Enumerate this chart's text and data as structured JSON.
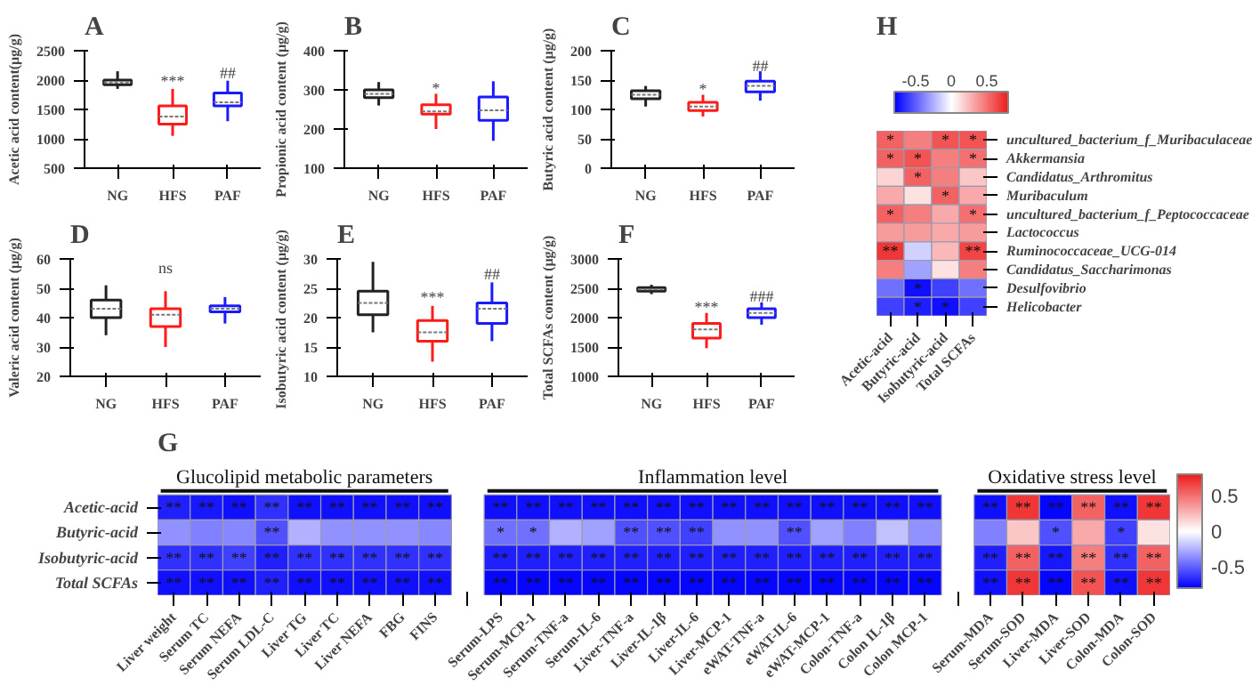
{
  "chart_data": [
    {
      "type": "box",
      "title": "A",
      "ylabel": "Acetic acid content(μg/g)",
      "categories": [
        "NG",
        "HFS",
        "PAF"
      ],
      "colors": [
        "#222222",
        "#ff1a1a",
        "#1a1aff"
      ],
      "ylim": [
        500,
        2500
      ],
      "yticks": [
        500,
        1000,
        1500,
        2000,
        2500
      ],
      "boxes": [
        {
          "low": 1850,
          "q1": 1920,
          "median": 1960,
          "q3": 2000,
          "high": 2150
        },
        {
          "low": 1050,
          "q1": 1250,
          "median": 1380,
          "q3": 1560,
          "high": 1850
        },
        {
          "low": 1300,
          "q1": 1560,
          "median": 1620,
          "q3": 1780,
          "high": 1990
        }
      ],
      "annotations": [
        {
          "text": "***",
          "x": "HFS",
          "y": 1980
        },
        {
          "text": "##",
          "x": "PAF",
          "y": 2120
        }
      ]
    },
    {
      "type": "box",
      "title": "B",
      "ylabel": "Propionic acid content (μg/g)",
      "categories": [
        "NG",
        "HFS",
        "PAF"
      ],
      "colors": [
        "#222222",
        "#ff1a1a",
        "#1a1aff"
      ],
      "ylim": [
        100,
        400
      ],
      "yticks": [
        100,
        200,
        300,
        400
      ],
      "boxes": [
        {
          "low": 260,
          "q1": 280,
          "median": 290,
          "q3": 300,
          "high": 320
        },
        {
          "low": 200,
          "q1": 238,
          "median": 245,
          "q3": 262,
          "high": 290
        },
        {
          "low": 170,
          "q1": 222,
          "median": 248,
          "q3": 282,
          "high": 322
        }
      ],
      "annotations": [
        {
          "text": "*",
          "x": "HFS",
          "y": 305
        }
      ]
    },
    {
      "type": "box",
      "title": "C",
      "ylabel": "Butyric acid content (μg/g)",
      "categories": [
        "NG",
        "HFS",
        "PAF"
      ],
      "colors": [
        "#222222",
        "#ff1a1a",
        "#1a1aff"
      ],
      "ylim": [
        0,
        200
      ],
      "yticks": [
        0,
        50,
        100,
        150,
        200
      ],
      "boxes": [
        {
          "low": 105,
          "q1": 118,
          "median": 125,
          "q3": 132,
          "high": 140
        },
        {
          "low": 88,
          "q1": 98,
          "median": 105,
          "q3": 112,
          "high": 125
        },
        {
          "low": 115,
          "q1": 130,
          "median": 140,
          "q3": 148,
          "high": 165
        }
      ],
      "annotations": [
        {
          "text": "*",
          "x": "HFS",
          "y": 135
        },
        {
          "text": "##",
          "x": "PAF",
          "y": 175
        }
      ]
    },
    {
      "type": "box",
      "title": "D",
      "ylabel": "Valeric acid content (μg/g)",
      "categories": [
        "NG",
        "HFS",
        "PAF"
      ],
      "colors": [
        "#222222",
        "#ff1a1a",
        "#1a1aff"
      ],
      "ylim": [
        20,
        60
      ],
      "yticks": [
        20,
        30,
        40,
        50,
        60
      ],
      "boxes": [
        {
          "low": 34,
          "q1": 40,
          "median": 43,
          "q3": 46,
          "high": 51
        },
        {
          "low": 30,
          "q1": 37,
          "median": 41,
          "q3": 43,
          "high": 49
        },
        {
          "low": 38,
          "q1": 42,
          "median": 43,
          "q3": 44,
          "high": 47
        }
      ],
      "annotations": [
        "ns"
      ]
    },
    {
      "type": "box",
      "title": "E",
      "ylabel": "Isobutyric acid content  (μg/g)",
      "categories": [
        "NG",
        "HFS",
        "PAF"
      ],
      "colors": [
        "#222222",
        "#ff1a1a",
        "#1a1aff"
      ],
      "ylim": [
        10,
        30
      ],
      "yticks": [
        10,
        15,
        20,
        25,
        30
      ],
      "boxes": [
        {
          "low": 17.5,
          "q1": 20.5,
          "median": 22.5,
          "q3": 24.5,
          "high": 29.5
        },
        {
          "low": 12.5,
          "q1": 16,
          "median": 17.5,
          "q3": 19.5,
          "high": 22
        },
        {
          "low": 16,
          "q1": 19,
          "median": 21.5,
          "q3": 22.5,
          "high": 26
        }
      ],
      "annotations": [
        {
          "text": "***",
          "x": "HFS",
          "y": 23.5
        },
        {
          "text": "##",
          "x": "PAF",
          "y": 27.5
        }
      ]
    },
    {
      "type": "box",
      "title": "F",
      "ylabel": "Total SCFAs content (μg/g)",
      "categories": [
        "NG",
        "HFS",
        "PAF"
      ],
      "colors": [
        "#222222",
        "#ff1a1a",
        "#1a1aff"
      ],
      "ylim": [
        1000,
        3000
      ],
      "yticks": [
        1000,
        1500,
        2000,
        2500,
        3000
      ],
      "boxes": [
        {
          "low": 2400,
          "q1": 2450,
          "median": 2480,
          "q3": 2510,
          "high": 2560
        },
        {
          "low": 1480,
          "q1": 1650,
          "median": 1800,
          "q3": 1900,
          "high": 2080
        },
        {
          "low": 1880,
          "q1": 2000,
          "median": 2080,
          "q3": 2150,
          "high": 2260
        }
      ],
      "annotations": [
        {
          "text": "***",
          "x": "HFS",
          "y": 2180
        },
        {
          "text": "###",
          "x": "PAF",
          "y": 2360
        }
      ]
    },
    {
      "type": "heatmap",
      "title": "H",
      "categories": [
        "Acetic-acid",
        "Butyric-acid",
        "Isobutyric-acid",
        "Total SCFAs"
      ],
      "y_categories": [
        "uncultured_bacterium_f_Muribaculaceae",
        "Akkermansia",
        "Candidatus_Arthromitus",
        "Muribaculum",
        "uncultured_bacterium_f_Peptococcaceae",
        "Lactococcus",
        "Ruminococcaceae_UCG-014",
        "Candidatus_Saccharimonas",
        "Desulfovibrio",
        "Helicobacter"
      ],
      "cells": [
        [
          0.55,
          0.45,
          0.6,
          0.6
        ],
        [
          0.55,
          0.6,
          0.45,
          0.5
        ],
        [
          0.15,
          0.55,
          0.45,
          0.2
        ],
        [
          0.3,
          0.1,
          0.55,
          0.3
        ],
        [
          0.55,
          0.45,
          0.3,
          0.5
        ],
        [
          0.35,
          0.35,
          0.3,
          0.35
        ],
        [
          0.7,
          -0.15,
          0.25,
          0.65
        ],
        [
          0.45,
          -0.3,
          0.1,
          0.45
        ],
        [
          -0.45,
          -0.75,
          -0.6,
          -0.45
        ],
        [
          -0.6,
          -0.7,
          -0.75,
          -0.6
        ]
      ],
      "cell_labels": [
        [
          "*",
          null,
          "*",
          "*"
        ],
        [
          "*",
          "*",
          null,
          "*"
        ],
        [
          null,
          "*",
          null,
          null
        ],
        [
          null,
          null,
          "*",
          null
        ],
        [
          "*",
          null,
          null,
          "*"
        ],
        [
          null,
          null,
          null,
          null
        ],
        [
          "**",
          null,
          null,
          "**"
        ],
        [
          null,
          null,
          null,
          null
        ],
        [
          null,
          "*",
          null,
          null
        ],
        [
          null,
          "*",
          "*",
          null
        ]
      ],
      "clim": [
        -0.8,
        0.8
      ],
      "cticks": [
        -0.5,
        0,
        0.5
      ]
    },
    {
      "type": "heatmap",
      "title": "G",
      "annotations": [
        "Glucolipid metabolic parameters",
        "Inflammation level",
        "Oxidative stress level"
      ],
      "categories": [
        "Liver weight",
        "Serum TC",
        "Serum NEFA",
        "Serum LDL-C",
        "Liver TG",
        "Liver TC",
        "Liver NEFA",
        "FBG",
        "FINS",
        null,
        "Serum-LPS",
        "Serum-MCP-1",
        "Serum-TNF-a",
        "Serum-IL-6",
        "Liver-TNF-a",
        "Liver-IL-1β",
        "Liver-IL-6",
        "Liver-MCP-1",
        "eWAT-TNF-a",
        "eWAT-IL-6",
        "eWAT-MCP-1",
        "Colon-TNF-a",
        "Colon IL-1β",
        "Colon MCP-1",
        null,
        "Serum-MDA",
        "Serum-SOD",
        "Liver-MDA",
        "Liver-SOD",
        "Colon-MDA",
        "Colon-SOD"
      ],
      "y_categories": [
        "Acetic-acid",
        "Butyric-acid",
        "Isobutyric-acid",
        "Total SCFAs"
      ],
      "cells": [
        [
          -0.7,
          -0.72,
          -0.75,
          -0.65,
          -0.75,
          -0.75,
          -0.75,
          -0.75,
          -0.75,
          null,
          -0.75,
          -0.75,
          -0.75,
          -0.75,
          -0.75,
          -0.75,
          -0.75,
          -0.75,
          -0.75,
          -0.75,
          -0.75,
          -0.75,
          -0.75,
          -0.75,
          null,
          -0.75,
          0.7,
          -0.78,
          0.55,
          -0.75,
          0.7
        ],
        [
          -0.35,
          -0.4,
          -0.38,
          -0.55,
          -0.25,
          -0.35,
          -0.35,
          -0.35,
          -0.38,
          null,
          -0.45,
          -0.45,
          -0.25,
          -0.3,
          -0.55,
          -0.55,
          -0.6,
          -0.35,
          -0.35,
          -0.55,
          -0.3,
          -0.4,
          -0.2,
          -0.35,
          null,
          -0.4,
          0.2,
          -0.55,
          0.3,
          -0.6,
          0.1
        ],
        [
          -0.65,
          -0.65,
          -0.6,
          -0.7,
          -0.65,
          -0.65,
          -0.65,
          -0.65,
          -0.65,
          null,
          -0.7,
          -0.7,
          -0.7,
          -0.7,
          -0.7,
          -0.7,
          -0.7,
          -0.7,
          -0.7,
          -0.7,
          -0.7,
          -0.7,
          -0.7,
          -0.7,
          null,
          -0.7,
          0.55,
          -0.72,
          0.45,
          -0.65,
          0.55
        ],
        [
          -0.75,
          -0.75,
          -0.75,
          -0.7,
          -0.75,
          -0.75,
          -0.75,
          -0.75,
          -0.75,
          null,
          -0.78,
          -0.78,
          -0.78,
          -0.78,
          -0.78,
          -0.78,
          -0.78,
          -0.78,
          -0.78,
          -0.78,
          -0.78,
          -0.78,
          -0.78,
          -0.78,
          null,
          -0.75,
          0.7,
          -0.78,
          0.6,
          -0.75,
          0.7
        ]
      ],
      "cell_labels": [
        [
          "**",
          "**",
          "**",
          "**",
          "**",
          "**",
          "**",
          "**",
          "**",
          null,
          "**",
          "**",
          "**",
          "**",
          "**",
          "**",
          "**",
          "**",
          "**",
          "**",
          "**",
          "**",
          "**",
          "**",
          null,
          "**",
          "**",
          "**",
          "**",
          "**",
          "**"
        ],
        [
          null,
          null,
          null,
          "**",
          null,
          null,
          null,
          null,
          null,
          null,
          "*",
          "*",
          null,
          null,
          "**",
          "**",
          "**",
          null,
          null,
          "**",
          null,
          null,
          null,
          null,
          null,
          null,
          null,
          "*",
          null,
          "*",
          null
        ],
        [
          "**",
          "**",
          "**",
          "**",
          "**",
          "**",
          "**",
          "**",
          "**",
          null,
          "**",
          "**",
          "**",
          "**",
          "**",
          "**",
          "**",
          "**",
          "**",
          "**",
          "**",
          "**",
          "**",
          "**",
          null,
          "**",
          "**",
          "**",
          "**",
          "**",
          "**"
        ],
        [
          "**",
          "**",
          "**",
          "**",
          "**",
          "**",
          "**",
          "**",
          "**",
          null,
          "**",
          "**",
          "**",
          "**",
          "**",
          "**",
          "**",
          "**",
          "**",
          "**",
          "**",
          "**",
          "**",
          "**",
          null,
          "**",
          "**",
          "**",
          "**",
          "**",
          "**"
        ]
      ],
      "clim": [
        -0.8,
        0.8
      ],
      "cticks": [
        -0.5,
        0,
        0.5
      ]
    }
  ]
}
